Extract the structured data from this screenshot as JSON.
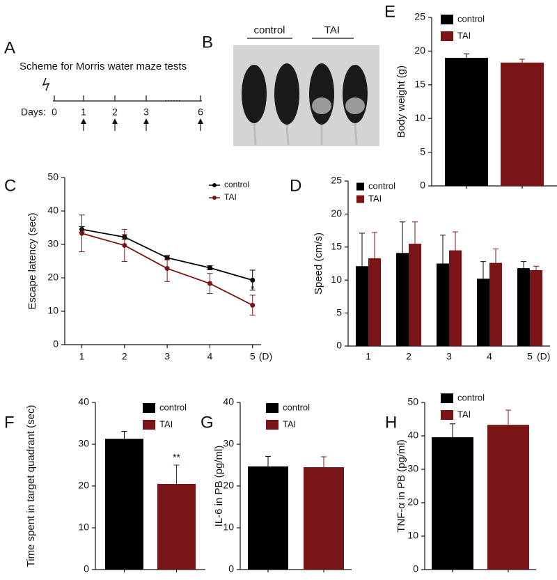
{
  "scheme": {
    "label": "A",
    "title": "Scheme for Morris water maze tests",
    "days_label": "Days:",
    "days": [
      "0",
      "1",
      "2",
      "3",
      "6"
    ],
    "ellipsis": "......"
  },
  "photo": {
    "label": "B",
    "groups": [
      "control",
      "TAI"
    ]
  },
  "chart_data": [
    {
      "type": "bar",
      "panel": "E",
      "ylabel": "Body weight (g)",
      "ylim": [
        0,
        25
      ],
      "yticks": [
        0,
        5,
        10,
        15,
        20,
        25
      ],
      "series": [
        {
          "name": "control",
          "color": "#000000",
          "values": [
            19.0
          ],
          "errors": [
            0.6
          ]
        },
        {
          "name": "TAI",
          "color": "#7b1416",
          "values": [
            18.3
          ],
          "errors": [
            0.5
          ]
        }
      ]
    },
    {
      "type": "line",
      "panel": "C",
      "ylabel": "Escape latency (sec)",
      "xlabel": "(D)",
      "x": [
        1,
        2,
        3,
        4,
        5
      ],
      "xlim": [
        0.6,
        5.2
      ],
      "xticks": [
        1,
        2,
        3,
        4,
        5
      ],
      "ylim": [
        0,
        50
      ],
      "yticks": [
        0,
        10,
        20,
        30,
        40,
        50
      ],
      "annotations": [
        "*"
      ],
      "series": [
        {
          "name": "control",
          "color": "#000000",
          "values": [
            34.5,
            32.2,
            26.0,
            23.0,
            19.3
          ],
          "errors": [
            0.8,
            0.7,
            0.6,
            0.6,
            3.0
          ]
        },
        {
          "name": "TAI",
          "color": "#7b1416",
          "values": [
            33.3,
            29.7,
            22.8,
            18.3,
            11.8
          ],
          "errors": [
            5.5,
            4.8,
            3.9,
            3.0,
            3.0
          ]
        }
      ]
    },
    {
      "type": "bar",
      "panel": "D",
      "ylabel": "Speed (cm/s)",
      "xlabel": "(D)",
      "categories": [
        "1",
        "2",
        "3",
        "4",
        "5"
      ],
      "ylim": [
        0,
        25
      ],
      "yticks": [
        0,
        5,
        10,
        15,
        20,
        25
      ],
      "series": [
        {
          "name": "control",
          "color": "#000000",
          "values": [
            12.1,
            14.1,
            12.5,
            10.2,
            11.8
          ],
          "errors": [
            5.0,
            4.7,
            4.3,
            2.6,
            1.0
          ]
        },
        {
          "name": "TAI",
          "color": "#7b1416",
          "values": [
            13.3,
            15.5,
            14.5,
            12.6,
            11.5
          ],
          "errors": [
            3.9,
            3.3,
            2.8,
            2.1,
            0.6
          ]
        }
      ]
    },
    {
      "type": "bar",
      "panel": "F",
      "ylabel": "Time spent in target quadrant (sec)",
      "ylim": [
        0,
        40
      ],
      "yticks": [
        0,
        10,
        20,
        30,
        40
      ],
      "annotations": [
        "**"
      ],
      "series": [
        {
          "name": "control",
          "color": "#000000",
          "values": [
            31.3
          ],
          "errors": [
            1.8
          ]
        },
        {
          "name": "TAI",
          "color": "#7b1416",
          "values": [
            20.5
          ],
          "errors": [
            4.5
          ]
        }
      ]
    },
    {
      "type": "bar",
      "panel": "G",
      "ylabel": "IL-6 in PB (pg/ml)",
      "ylim": [
        0,
        40
      ],
      "yticks": [
        0,
        10,
        20,
        30,
        40
      ],
      "series": [
        {
          "name": "control",
          "color": "#000000",
          "values": [
            24.7
          ],
          "errors": [
            2.4
          ]
        },
        {
          "name": "TAI",
          "color": "#7b1416",
          "values": [
            24.5
          ],
          "errors": [
            2.5
          ]
        }
      ]
    },
    {
      "type": "bar",
      "panel": "H",
      "ylabel": "TNF-α in PB (pg/ml)",
      "ylim": [
        0,
        50
      ],
      "yticks": [
        0,
        10,
        20,
        30,
        40,
        50
      ],
      "series": [
        {
          "name": "control",
          "color": "#000000",
          "values": [
            39.6
          ],
          "errors": [
            4.0
          ]
        },
        {
          "name": "TAI",
          "color": "#7b1416",
          "values": [
            43.3
          ],
          "errors": [
            4.4
          ]
        }
      ]
    }
  ]
}
